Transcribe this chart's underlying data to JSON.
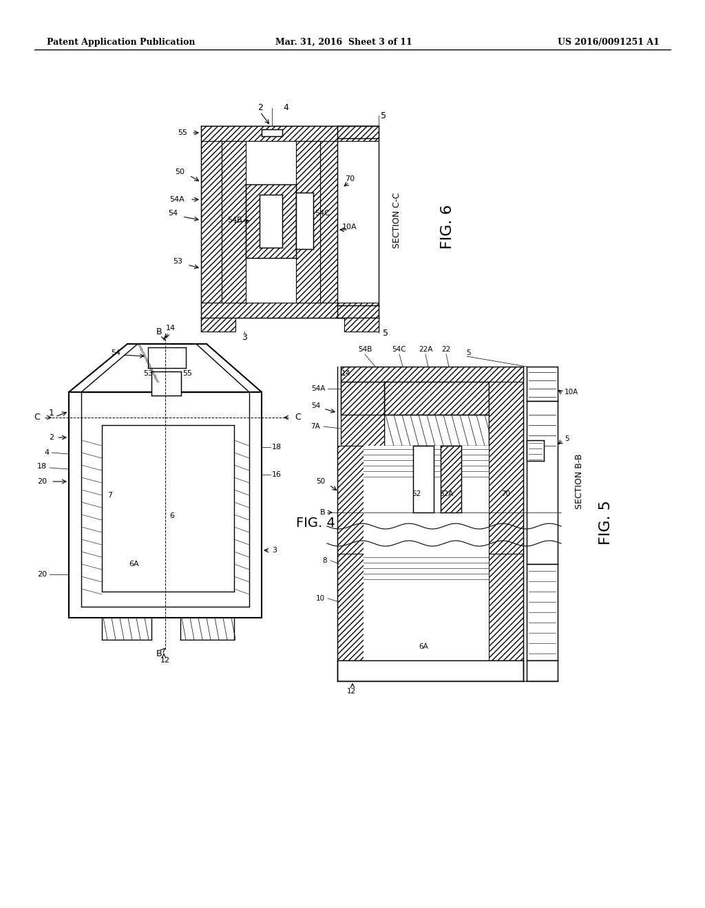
{
  "background_color": "#ffffff",
  "header_left": "Patent Application Publication",
  "header_center": "Mar. 31, 2016  Sheet 3 of 11",
  "header_right": "US 2016/0091251 A1"
}
